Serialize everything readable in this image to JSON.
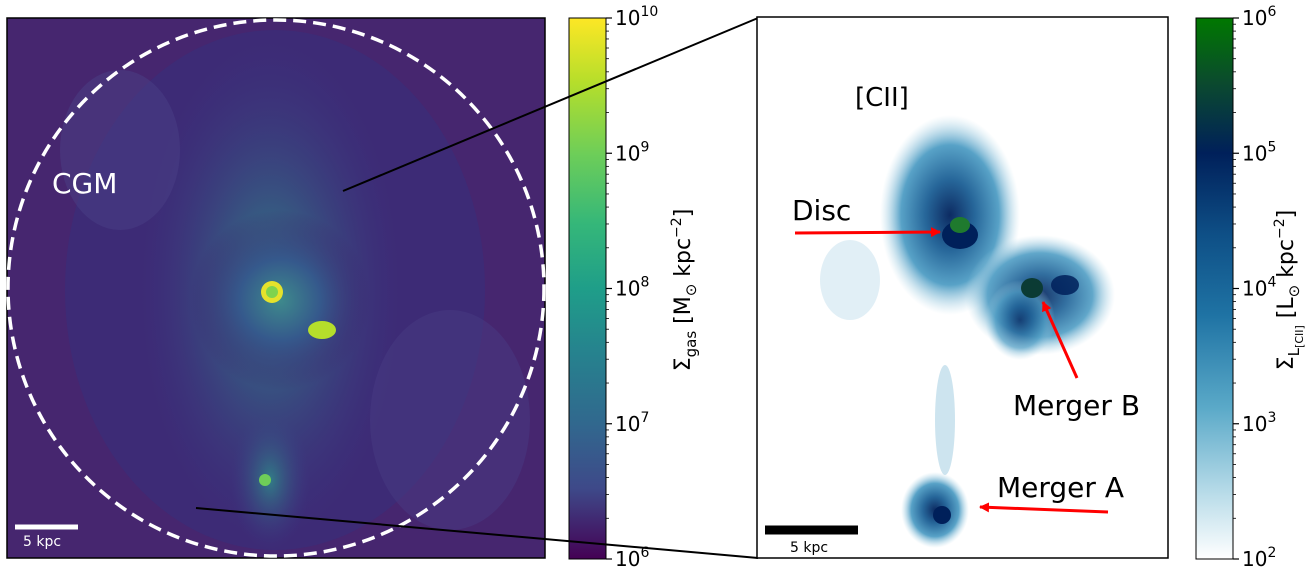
{
  "left_panel": {
    "region_label": "CGM",
    "scalebar_label": "5 kpc"
  },
  "left_colorbar": {
    "label_main": "Σ",
    "label_sub": "gas",
    "label_units_pre": " [M",
    "label_units_sun": "⊙",
    "label_units_post": " kpc",
    "label_units_exp": "−2",
    "label_close": "]",
    "ticks": [
      {
        "base": "10",
        "exp": "10"
      },
      {
        "base": "10",
        "exp": "9"
      },
      {
        "base": "10",
        "exp": "8"
      },
      {
        "base": "10",
        "exp": "7"
      },
      {
        "base": "10",
        "exp": "6"
      }
    ],
    "colors": [
      "#fde725",
      "#5ec962",
      "#21918c",
      "#3b528b",
      "#440154"
    ]
  },
  "right_panel": {
    "line_label": "[CII]",
    "scalebar_label": "5 kpc",
    "annotations": {
      "disc": "Disc",
      "merger_b": "Merger B",
      "merger_a": "Merger A"
    },
    "arrow_color": "#ff0000"
  },
  "right_colorbar": {
    "label_main": "Σ",
    "label_sub": "L",
    "label_subsub": "[CII]",
    "label_units_pre": " [L",
    "label_units_sun": "⊙",
    "label_units_post": " kpc",
    "label_units_exp": "−2",
    "label_close": "]",
    "ticks": [
      {
        "base": "10",
        "exp": "6"
      },
      {
        "base": "10",
        "exp": "5"
      },
      {
        "base": "10",
        "exp": "4"
      },
      {
        "base": "10",
        "exp": "3"
      },
      {
        "base": "10",
        "exp": "2"
      }
    ],
    "colors": [
      "#006400",
      "#00205a",
      "#0e5a8c",
      "#4a9cc2",
      "#ffffff"
    ]
  }
}
